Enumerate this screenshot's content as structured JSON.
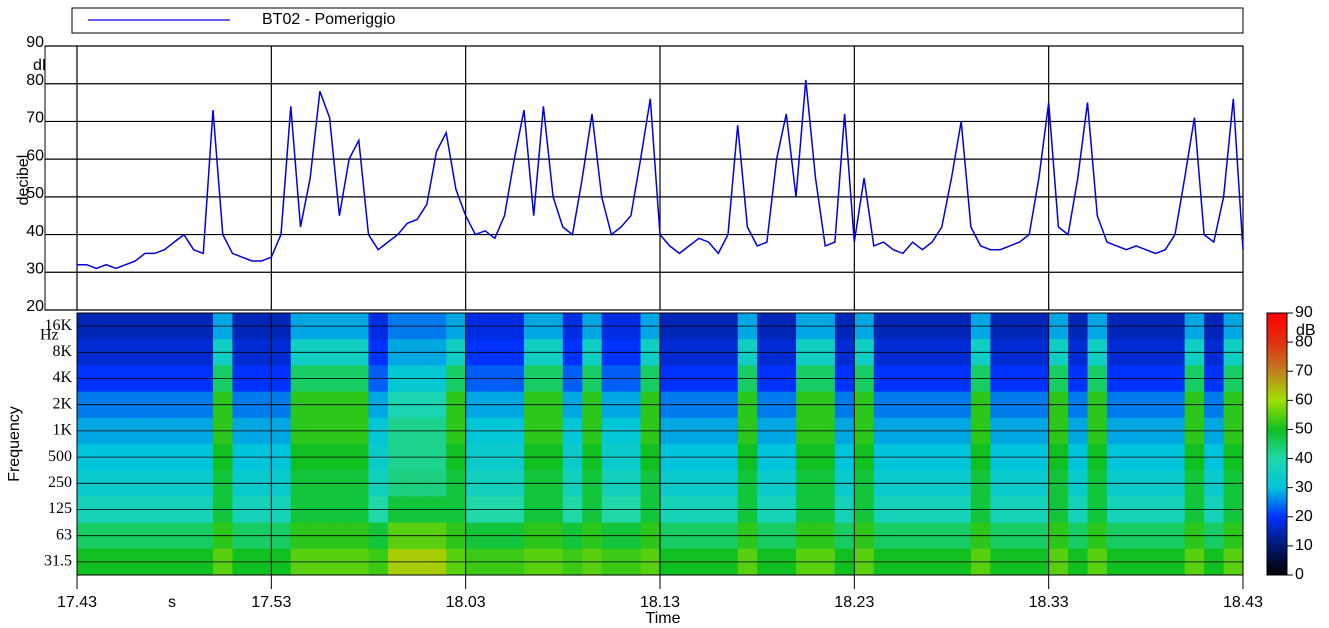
{
  "chart_data": [
    {
      "type": "line",
      "ylabel": "decibel",
      "yunit": "dB",
      "ylim": [
        20,
        90
      ],
      "yticks": [
        20,
        30,
        40,
        50,
        60,
        70,
        80,
        90
      ],
      "grid": true,
      "xlim": [
        0,
        60
      ],
      "x": [
        0,
        0.5,
        1,
        1.5,
        2,
        2.5,
        3,
        3.5,
        4,
        4.5,
        5,
        5.5,
        6,
        6.5,
        7,
        7.5,
        8,
        8.5,
        9,
        9.5,
        10,
        10.5,
        11,
        11.5,
        12,
        12.5,
        13,
        13.5,
        14,
        14.5,
        15,
        15.5,
        16,
        16.5,
        17,
        17.5,
        18,
        18.5,
        19,
        19.5,
        20,
        20.5,
        21,
        21.5,
        22,
        22.5,
        23,
        23.5,
        24,
        24.5,
        25,
        25.5,
        26,
        26.5,
        27,
        27.5,
        28,
        28.5,
        29,
        29.5,
        30,
        30.5,
        31,
        31.5,
        32,
        32.5,
        33,
        33.5,
        34,
        34.5,
        35,
        35.5,
        36,
        36.5,
        37,
        37.5,
        38,
        38.5,
        39,
        39.5,
        40,
        40.5,
        41,
        41.5,
        42,
        42.5,
        43,
        43.5,
        44,
        44.5,
        45,
        45.5,
        46,
        46.5,
        47,
        47.5,
        48,
        48.5,
        49,
        49.5,
        50,
        50.5,
        51,
        51.5,
        52,
        52.5,
        53,
        53.5,
        54,
        54.5,
        55,
        55.5,
        56,
        56.5,
        57,
        57.5,
        58,
        58.5,
        59,
        59.5,
        60
      ],
      "series": [
        {
          "name": "BT02 - Pomeriggio",
          "color": "#0000e0",
          "values": [
            32,
            32,
            31,
            32,
            31,
            32,
            33,
            35,
            35,
            36,
            38,
            40,
            36,
            35,
            73,
            40,
            35,
            34,
            33,
            33,
            34,
            40,
            74,
            42,
            55,
            78,
            71,
            45,
            60,
            65,
            40,
            36,
            38,
            40,
            43,
            44,
            48,
            62,
            67,
            52,
            45,
            40,
            41,
            39,
            45,
            60,
            73,
            45,
            74,
            50,
            42,
            40,
            55,
            72,
            50,
            40,
            42,
            45,
            60,
            76,
            40,
            37,
            35,
            37,
            39,
            38,
            35,
            40,
            69,
            42,
            37,
            38,
            60,
            72,
            50,
            81,
            55,
            37,
            38,
            72,
            38,
            55,
            37,
            38,
            36,
            35,
            38,
            36,
            38,
            42,
            55,
            70,
            42,
            37,
            36,
            36,
            37,
            38,
            40,
            55,
            75,
            42,
            40,
            55,
            75,
            45,
            38,
            37,
            36,
            37,
            36,
            35,
            36,
            40,
            55,
            71,
            40,
            38,
            50,
            76,
            36
          ]
        }
      ]
    },
    {
      "type": "heatmap",
      "ylabel": "Frequency",
      "yunit": "Hz",
      "xlabel": "Time",
      "xunit": "s",
      "xlim": [
        0,
        60
      ],
      "xticks": [
        {
          "value": 0,
          "label": "17.43"
        },
        {
          "value": 10,
          "label": "17.53"
        },
        {
          "value": 20,
          "label": "18.03"
        },
        {
          "value": 30,
          "label": "18.13"
        },
        {
          "value": 40,
          "label": "18.23"
        },
        {
          "value": 50,
          "label": "18.33"
        },
        {
          "value": 60,
          "label": "18.43"
        }
      ],
      "rows": [
        "16K",
        "8K",
        "4K",
        "2K",
        "1K",
        "500",
        "250",
        "125",
        "63",
        "31.5"
      ],
      "zlim": [
        0,
        90
      ],
      "zticks": [
        0,
        10,
        20,
        30,
        40,
        50,
        60,
        70,
        80,
        90
      ],
      "zunit": "dB",
      "colors": [
        "#000000",
        "#001a70",
        "#0032ff",
        "#00c4dc",
        "#20d8a8",
        "#10c020",
        "#a0e000",
        "#c08020",
        "#e03010",
        "#ff0000"
      ],
      "values": [
        [
          15,
          15,
          15,
          15,
          15,
          15,
          15,
          28,
          15,
          15,
          15,
          28,
          28,
          28,
          28,
          18,
          25,
          25,
          25,
          28,
          18,
          18,
          18,
          28,
          28,
          18,
          28,
          18,
          18,
          28,
          15,
          15,
          15,
          15,
          28,
          15,
          15,
          28,
          28,
          15,
          28,
          15,
          15,
          15,
          15,
          15,
          28,
          15,
          15,
          15,
          28,
          15,
          28,
          15,
          15,
          15,
          15,
          28,
          15,
          28
        ],
        [
          17,
          17,
          17,
          17,
          17,
          17,
          17,
          35,
          17,
          17,
          17,
          35,
          35,
          35,
          35,
          20,
          28,
          28,
          28,
          35,
          20,
          20,
          20,
          35,
          35,
          20,
          35,
          20,
          20,
          35,
          17,
          17,
          17,
          17,
          35,
          17,
          17,
          35,
          35,
          17,
          35,
          17,
          17,
          17,
          17,
          17,
          35,
          17,
          17,
          17,
          35,
          17,
          35,
          17,
          17,
          17,
          17,
          35,
          17,
          35
        ],
        [
          20,
          20,
          20,
          20,
          20,
          20,
          20,
          45,
          20,
          20,
          20,
          45,
          45,
          45,
          45,
          23,
          32,
          32,
          32,
          45,
          23,
          23,
          23,
          45,
          45,
          23,
          45,
          23,
          23,
          45,
          20,
          20,
          20,
          20,
          45,
          20,
          20,
          45,
          45,
          20,
          45,
          20,
          20,
          20,
          20,
          20,
          45,
          20,
          20,
          20,
          45,
          20,
          45,
          20,
          20,
          20,
          20,
          45,
          20,
          45
        ],
        [
          25,
          25,
          25,
          25,
          25,
          25,
          25,
          52,
          25,
          25,
          25,
          52,
          52,
          52,
          52,
          28,
          38,
          38,
          38,
          52,
          28,
          28,
          28,
          52,
          52,
          28,
          52,
          28,
          28,
          52,
          25,
          25,
          25,
          25,
          52,
          25,
          25,
          52,
          52,
          25,
          52,
          25,
          25,
          25,
          25,
          25,
          52,
          25,
          25,
          25,
          52,
          25,
          52,
          25,
          25,
          25,
          25,
          52,
          25,
          52
        ],
        [
          28,
          28,
          28,
          28,
          28,
          28,
          28,
          52,
          28,
          28,
          28,
          52,
          52,
          52,
          52,
          31,
          42,
          42,
          42,
          52,
          31,
          31,
          31,
          52,
          52,
          31,
          52,
          31,
          31,
          52,
          28,
          28,
          28,
          28,
          52,
          28,
          28,
          52,
          52,
          28,
          52,
          28,
          28,
          28,
          28,
          28,
          52,
          28,
          28,
          28,
          52,
          28,
          52,
          28,
          28,
          28,
          28,
          52,
          28,
          52
        ],
        [
          30,
          30,
          30,
          30,
          30,
          30,
          30,
          50,
          30,
          30,
          30,
          50,
          50,
          50,
          50,
          33,
          42,
          42,
          42,
          50,
          33,
          33,
          33,
          50,
          50,
          33,
          50,
          33,
          33,
          50,
          30,
          30,
          30,
          30,
          50,
          30,
          30,
          50,
          50,
          30,
          50,
          30,
          30,
          30,
          30,
          30,
          50,
          30,
          30,
          30,
          50,
          30,
          50,
          30,
          30,
          30,
          30,
          50,
          30,
          50
        ],
        [
          33,
          33,
          33,
          33,
          33,
          33,
          33,
          48,
          33,
          33,
          33,
          48,
          48,
          48,
          48,
          36,
          43,
          43,
          43,
          48,
          36,
          36,
          36,
          48,
          48,
          36,
          48,
          36,
          36,
          48,
          33,
          33,
          33,
          33,
          48,
          33,
          33,
          48,
          48,
          33,
          48,
          33,
          33,
          33,
          33,
          33,
          48,
          33,
          33,
          33,
          48,
          33,
          48,
          33,
          33,
          33,
          33,
          48,
          33,
          48
        ],
        [
          37,
          37,
          37,
          37,
          37,
          37,
          37,
          48,
          37,
          37,
          37,
          48,
          48,
          48,
          48,
          40,
          48,
          48,
          48,
          48,
          40,
          40,
          40,
          48,
          48,
          40,
          48,
          40,
          40,
          48,
          37,
          37,
          37,
          37,
          48,
          37,
          37,
          48,
          48,
          37,
          48,
          37,
          37,
          37,
          37,
          37,
          48,
          37,
          37,
          37,
          48,
          37,
          48,
          37,
          37,
          37,
          37,
          48,
          37,
          48
        ],
        [
          45,
          45,
          45,
          45,
          45,
          45,
          45,
          52,
          45,
          45,
          45,
          52,
          52,
          52,
          52,
          48,
          55,
          55,
          55,
          52,
          48,
          48,
          48,
          52,
          52,
          48,
          52,
          48,
          48,
          52,
          45,
          45,
          45,
          45,
          52,
          45,
          45,
          52,
          52,
          45,
          52,
          45,
          45,
          45,
          45,
          45,
          52,
          45,
          45,
          45,
          52,
          45,
          52,
          45,
          45,
          45,
          45,
          52,
          45,
          52
        ],
        [
          50,
          50,
          50,
          50,
          50,
          50,
          50,
          55,
          50,
          50,
          50,
          55,
          55,
          55,
          55,
          53,
          62,
          62,
          62,
          55,
          53,
          53,
          53,
          55,
          55,
          53,
          55,
          53,
          53,
          55,
          50,
          50,
          50,
          50,
          55,
          50,
          50,
          55,
          55,
          50,
          55,
          50,
          50,
          50,
          50,
          50,
          55,
          50,
          50,
          50,
          55,
          50,
          55,
          50,
          50,
          50,
          50,
          55,
          50,
          55
        ]
      ]
    }
  ]
}
